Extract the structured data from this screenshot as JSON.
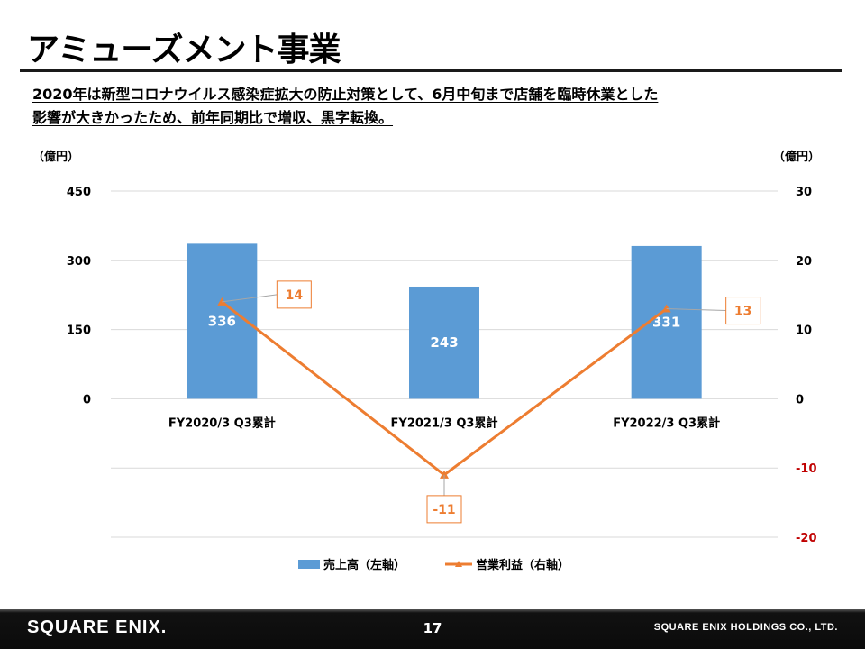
{
  "slide": {
    "title": "アミューズメント事業",
    "subtitle_line1": "2020年は新型コロナウイルス感染症拡大の防止対策として、6月中旬まで店舗を臨時休業とした",
    "subtitle_line2": "影響が大きかったため、前年同期比で増収、黒字転換。"
  },
  "chart_data": {
    "type": "bar",
    "categories": [
      "FY2020/3 Q3累計",
      "FY2021/3 Q3累計",
      "FY2022/3 Q3累計"
    ],
    "series": [
      {
        "name": "売上高（左軸）",
        "type": "bar",
        "axis": "left",
        "values": [
          336,
          243,
          331
        ],
        "color": "#5b9bd5"
      },
      {
        "name": "営業利益（右軸）",
        "type": "line",
        "axis": "right",
        "values": [
          14,
          -11,
          13
        ],
        "color": "#ed7d31"
      }
    ],
    "left_axis": {
      "unit_label": "（億円）",
      "ticks": [
        0,
        150,
        300,
        450
      ],
      "ylim": [
        -300,
        450
      ]
    },
    "right_axis": {
      "unit_label": "（億円）",
      "ticks": [
        -20,
        -10,
        0,
        10,
        20,
        30
      ],
      "ylim": [
        -20,
        30
      ],
      "negative_color": "#c00000"
    },
    "grid": true,
    "legend_position": "bottom"
  },
  "footer": {
    "logo_text": "SQUARE ENIX.",
    "page_number": "17",
    "company": "SQUARE ENIX HOLDINGS CO., LTD."
  }
}
